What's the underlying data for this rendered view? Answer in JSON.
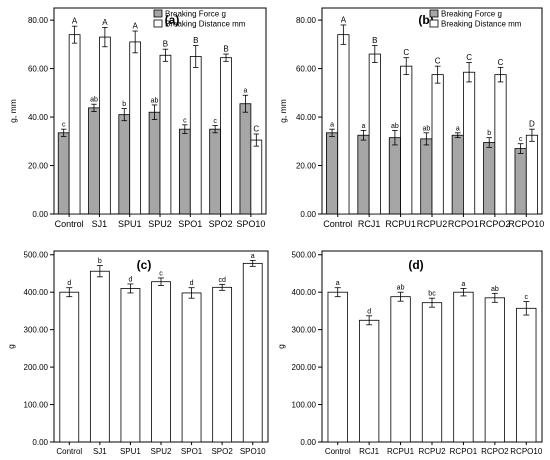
{
  "colors": {
    "force_fill": "#a6a6a6",
    "distance_fill": "#ffffff",
    "stroke": "#000000"
  },
  "chart_data": [
    {
      "type": "bar",
      "panel_label": "(a)",
      "ylabel": "g, mm",
      "ylim": [
        0,
        85
      ],
      "yticks": [
        0,
        20,
        40,
        60,
        80
      ],
      "ytick_labels": [
        "0.00",
        "20.00",
        "40.00",
        "60.00",
        "80.00"
      ],
      "categories": [
        "Control",
        "SJ1",
        "SPU1",
        "SPU2",
        "SPO1",
        "SPO2",
        "SPO10"
      ],
      "legend_position": "top-right",
      "series": [
        {
          "name": "Breaking Force g",
          "values": [
            33.5,
            43.8,
            41.0,
            42.0,
            35.0,
            35.0,
            45.5
          ],
          "errors": [
            1.5,
            1.5,
            2.5,
            3.0,
            1.8,
            1.5,
            3.5
          ],
          "letters": [
            "c",
            "ab",
            "b",
            "ab",
            "c",
            "c",
            "a"
          ]
        },
        {
          "name": "Breaking Distance mm",
          "values": [
            74.0,
            73.0,
            71.0,
            65.5,
            65.0,
            64.5,
            30.5
          ],
          "errors": [
            3.5,
            4.0,
            4.5,
            2.5,
            4.5,
            1.5,
            2.5
          ],
          "letters": [
            "A",
            "A",
            "A",
            "B",
            "B",
            "B",
            "C"
          ]
        }
      ]
    },
    {
      "type": "bar",
      "panel_label": "(b)",
      "ylabel": "g, mm",
      "ylim": [
        0,
        85
      ],
      "yticks": [
        0,
        20,
        40,
        60,
        80
      ],
      "ytick_labels": [
        "0.00",
        "20.00",
        "40.00",
        "60.00",
        "80.00"
      ],
      "categories": [
        "Control",
        "RCJ1",
        "RCPU1",
        "RCPU2",
        "RCPO1",
        "RCPO2",
        "RCPO10"
      ],
      "legend_position": "top-right",
      "series": [
        {
          "name": "Breaking Force g",
          "values": [
            33.5,
            32.5,
            31.5,
            31.0,
            32.5,
            29.5,
            27.0
          ],
          "errors": [
            1.5,
            2.0,
            3.0,
            2.5,
            1.0,
            2.0,
            2.0
          ],
          "letters": [
            "a",
            "a",
            "ab",
            "ab",
            "a",
            "b",
            "c"
          ]
        },
        {
          "name": "Breaking Distance mm",
          "values": [
            74.0,
            66.0,
            61.0,
            57.5,
            58.5,
            57.5,
            32.5
          ],
          "errors": [
            4.0,
            3.5,
            3.5,
            3.5,
            4.0,
            3.0,
            2.5
          ],
          "letters": [
            "A",
            "B",
            "C",
            "C",
            "C",
            "C",
            "D"
          ]
        }
      ]
    },
    {
      "type": "bar",
      "panel_label": "(c)",
      "ylabel": "g",
      "ylim": [
        0,
        510
      ],
      "yticks": [
        0,
        100,
        200,
        300,
        400,
        500
      ],
      "ytick_labels": [
        "0.00",
        "100.00",
        "200.00",
        "300.00",
        "400.00",
        "500.00"
      ],
      "categories": [
        "Control",
        "SJ1",
        "SPU1",
        "SPU2",
        "SPO1",
        "SPO2",
        "SPO10"
      ],
      "series": [
        {
          "name": "",
          "values": [
            400,
            456,
            410,
            428,
            398,
            413,
            477
          ],
          "errors": [
            12,
            15,
            12,
            10,
            14,
            8,
            8
          ],
          "letters": [
            "d",
            "b",
            "d",
            "c",
            "d",
            "cd",
            "a"
          ]
        }
      ]
    },
    {
      "type": "bar",
      "panel_label": "(d)",
      "ylabel": "g",
      "ylim": [
        0,
        510
      ],
      "yticks": [
        0,
        100,
        200,
        300,
        400,
        500
      ],
      "ytick_labels": [
        "0.00",
        "100.00",
        "200.00",
        "300.00",
        "400.00",
        "500.00"
      ],
      "categories": [
        "Control",
        "RCJ1",
        "RCPU1",
        "RCPU2",
        "RCPO1",
        "RCPO2",
        "RCPO10"
      ],
      "series": [
        {
          "name": "",
          "values": [
            400,
            325,
            388,
            372,
            400,
            385,
            357
          ],
          "errors": [
            12,
            12,
            12,
            12,
            10,
            12,
            18
          ],
          "letters": [
            "a",
            "d",
            "ab",
            "bc",
            "a",
            "ab",
            "c"
          ]
        }
      ]
    }
  ]
}
